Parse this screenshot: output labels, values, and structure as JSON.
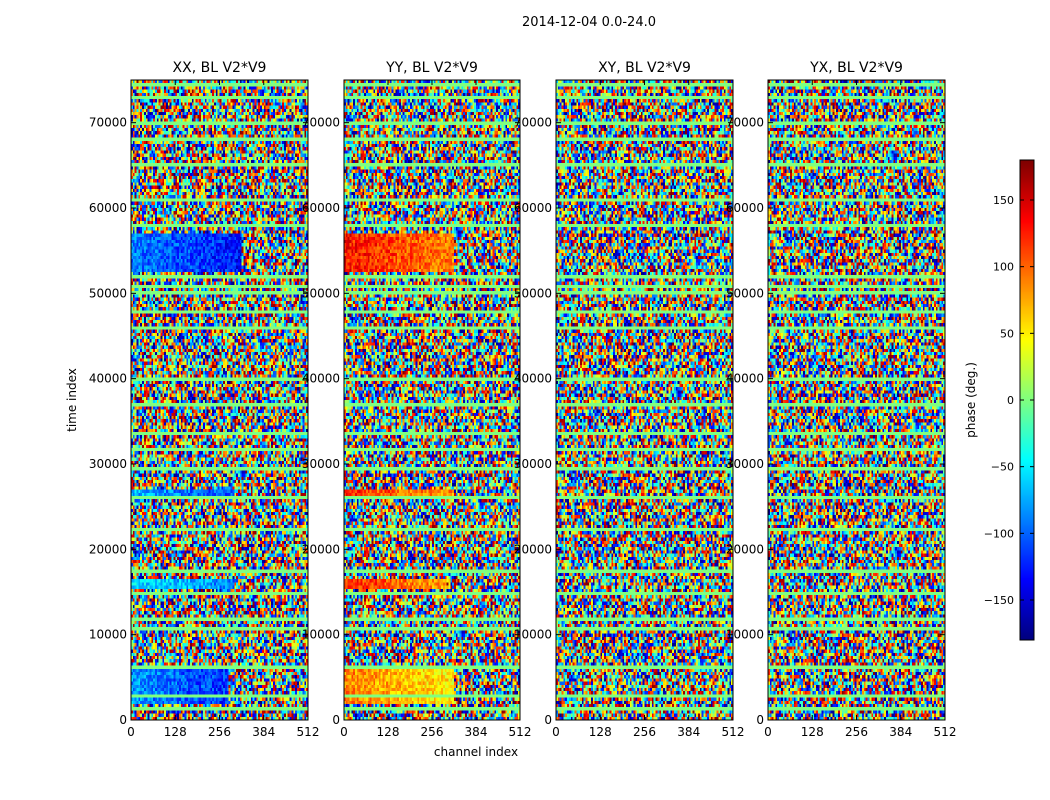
{
  "figure": {
    "suptitle": "2014-12-04 0.0-24.0"
  },
  "chart_data": {
    "type": "heatmap",
    "shared_ylabel": "time index",
    "shared_xlabel": "channel index",
    "xlim": [
      0,
      512
    ],
    "ylim": [
      0,
      75000
    ],
    "xticks": [
      0,
      128,
      256,
      384,
      512
    ],
    "yticks": [
      0,
      10000,
      20000,
      30000,
      40000,
      50000,
      60000,
      70000
    ],
    "colormap": "jet",
    "panels": [
      {
        "title": "XX, BL V2*V9",
        "bands": [
          {
            "t0": 52500,
            "t1": 57000,
            "c1": 320,
            "phase": -90
          },
          {
            "t0": 26000,
            "t1": 27000,
            "c1": 300,
            "phase": -70
          },
          {
            "t0": 15500,
            "t1": 16500,
            "c1": 300,
            "phase": -50
          },
          {
            "t0": 2000,
            "t1": 6000,
            "c1": 280,
            "phase": -80
          }
        ]
      },
      {
        "title": "YY, BL V2*V9",
        "bands": [
          {
            "t0": 52500,
            "t1": 57000,
            "c1": 320,
            "phase": 130
          },
          {
            "t0": 26000,
            "t1": 27000,
            "c1": 320,
            "phase": 120
          },
          {
            "t0": 15500,
            "t1": 16500,
            "c1": 300,
            "phase": 120
          },
          {
            "t0": 2000,
            "t1": 6000,
            "c1": 320,
            "phase": 90
          }
        ]
      },
      {
        "title": "XY, BL V2*V9",
        "bands": []
      },
      {
        "title": "YX, BL V2*V9",
        "bands": []
      }
    ],
    "flagged_rows": [
      1500,
      3000,
      6300,
      10800,
      12000,
      15000,
      17500,
      22500,
      26000,
      29500,
      31500,
      33500,
      37000,
      40000,
      46000,
      48000,
      50000,
      51000,
      51800,
      58000,
      61000,
      65000,
      68000,
      70000,
      73000,
      74500
    ],
    "colorbar": {
      "label": "phase (deg.)",
      "range": [
        -180,
        180
      ],
      "ticks": [
        -150,
        -100,
        -50,
        0,
        50,
        100,
        150
      ]
    }
  }
}
